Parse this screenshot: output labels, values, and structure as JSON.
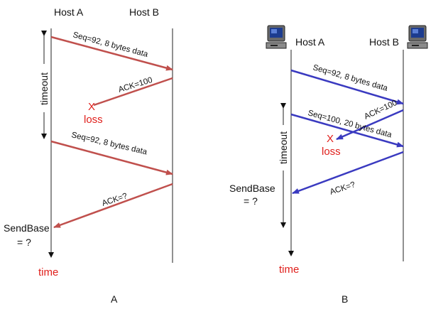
{
  "diagram_a": {
    "caption": "A",
    "host_a_label": "Host A",
    "host_b_label": "Host B",
    "timeout_label": "timeout",
    "msg1": "Seq=92, 8 bytes data",
    "ack1": "ACK=100",
    "loss_mark": "X",
    "loss_label": "loss",
    "msg2": "Seq=92, 8 bytes data",
    "ack2": "ACK=?",
    "sendbase_label": "SendBase",
    "sendbase_value": "= ?",
    "time_label": "time",
    "arrow_color": "#c0504d"
  },
  "diagram_b": {
    "caption": "B",
    "host_a_label": "Host A",
    "host_b_label": "Host B",
    "timeout_label": "timeout",
    "msg1": "Seq=92, 8 bytes data",
    "ack1": "ACK=100",
    "msg2": "Seq=100, 20 bytes data",
    "loss_mark": "X",
    "loss_label": "loss",
    "ack2": "ACK=?",
    "sendbase_label": "SendBase",
    "sendbase_value": "= ?",
    "time_label": "time",
    "arrow_color": "#3a3ac0"
  }
}
